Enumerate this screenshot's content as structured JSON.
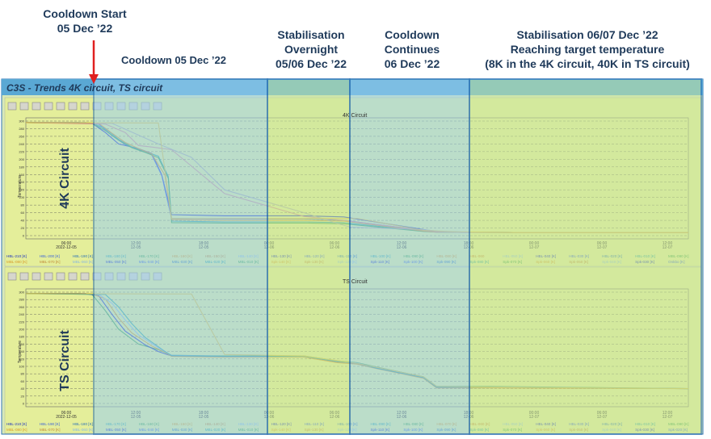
{
  "annotations": {
    "cooldown_start": "Cooldown Start\n05 Dec ’22",
    "cooldown_05": "Cooldown 05 Dec ’22",
    "stabilisation_overnight": "Stabilisation\nOvernight\n05/06 Dec ’22",
    "cooldown_continues": "Cooldown\nContinues\n06 Dec ’22",
    "stabilisation_final": "Stabilisation 06/07 Dec ’22\nReaching target temperature\n(8K in the 4K circuit, 40K in TS circuit)"
  },
  "app_title": "C3S - Trends 4K circuit, TS circuit",
  "circuit_labels": {
    "top": "4K Circuit",
    "bottom": "TS Circuit"
  },
  "colors": {
    "band_blue": "#9ad0f0",
    "band_green": "#c6e6a0",
    "plot_bg": "#e4ee9a",
    "frame_blue": "#2f74b5",
    "title_bar": "#5aa8d4",
    "arrow": "#e02020"
  },
  "toolbar_icons": [
    "cursor-icon",
    "pan-icon",
    "zoom-icon",
    "zoom-x-icon",
    "chart-icon",
    "search-icon",
    "zoom-out-icon",
    "settings-icon",
    "export-icon",
    "refresh-icon",
    "undo-icon",
    "play-icon",
    "clear-icon"
  ],
  "chart_data": [
    {
      "type": "line",
      "title": "4K Circuit",
      "ylabel": "Temperature",
      "xlabel": "",
      "x_ticks": [
        "06:00\n2022-12-05",
        "12:00\n12-05",
        "18:00\n12-05",
        "00:00\n12-06",
        "06:00\n12-06",
        "12:00\n12-06",
        "18:00\n12-06",
        "00:00\n12-07",
        "06:00\n12-07",
        "12:00\n12-07"
      ],
      "y_ticks": [
        "300",
        "280",
        "260",
        "240",
        "220",
        "200",
        "180",
        "160",
        "140",
        "120",
        "100",
        "80",
        "60",
        "40",
        "20",
        "0"
      ],
      "grid": true,
      "legend_entries": [
        "HBL-210 [K]",
        "HBL-200 [K]",
        "HBL-190 [K]",
        "HBL-180 [K]",
        "HBL-170 [K]",
        "HBL-160 [K]",
        "HBL-150 [K]",
        "HBL-140 [K]",
        "HBL-130 [K]",
        "HBL-120 [K]",
        "HBL-110 [K]",
        "HBL-100 [K]",
        "HBL-090 [K]",
        "HBL-080 [K]",
        "HBL-060",
        "HBL-050 [K]",
        "HBL-040 [K]",
        "HBL-030 [K]",
        "HBL-020 [K]",
        "HBL-010 [K]",
        "MBL-090 [K]",
        "MBL-080 [K]",
        "MBL-070 [K]",
        "MBL-060 [K]",
        "MBL-050 [K]",
        "MBL-040 [K]",
        "MBL-030 [K]",
        "MBL-020 [K]",
        "MBL-010 [K]",
        "Spk-140 [K]",
        "Spk-130 [K]",
        "Spk-120 [K]",
        "Spk-110 [K]",
        "Spk-100 [K]",
        "Spk-090 [K]",
        "Spk-080 [K]",
        "Spk-070 [K]",
        "Spk-060 [K]",
        "Spk-050 [K]",
        "Spk-040 [K]",
        "Spk-030 [K]",
        "Onkbo [K]"
      ],
      "series": [
        {
          "color": "#1a2fc0",
          "x": [
            0.0,
            0.08,
            0.1,
            0.12,
            0.14,
            0.17,
            0.19,
            0.205,
            0.22,
            0.3,
            0.42,
            0.48,
            0.6,
            0.62,
            0.75,
            1.0
          ],
          "values": [
            296,
            296,
            294,
            270,
            240,
            228,
            215,
            160,
            55,
            52,
            52,
            49,
            16,
            10,
            8,
            8
          ]
        },
        {
          "color": "#3c64d8",
          "x": [
            0.0,
            0.09,
            0.11,
            0.13,
            0.15,
            0.17,
            0.19,
            0.205,
            0.22,
            0.3,
            0.42,
            0.48,
            0.6,
            0.62,
            0.75,
            1.0
          ],
          "values": [
            296,
            296,
            292,
            262,
            238,
            225,
            212,
            158,
            45,
            44,
            44,
            40,
            14,
            10,
            8,
            8
          ]
        },
        {
          "color": "#27a0a0",
          "x": [
            0.0,
            0.1,
            0.12,
            0.14,
            0.16,
            0.18,
            0.2,
            0.215,
            0.22,
            0.3,
            0.42,
            0.48,
            0.6,
            0.62,
            0.75,
            1.0
          ],
          "values": [
            296,
            295,
            280,
            252,
            232,
            220,
            208,
            155,
            38,
            36,
            36,
            34,
            12,
            10,
            8,
            8
          ]
        },
        {
          "color": "#3aa048",
          "x": [
            0.0,
            0.1,
            0.12,
            0.14,
            0.16,
            0.18,
            0.2,
            0.215,
            0.22,
            0.3,
            0.42,
            0.48,
            0.6,
            0.62,
            0.75,
            1.0
          ],
          "values": [
            296,
            294,
            275,
            250,
            230,
            218,
            204,
            150,
            34,
            33,
            33,
            31,
            11,
            9,
            8,
            8
          ]
        },
        {
          "color": "#d89a2a",
          "x": [
            0.0,
            0.11,
            0.13,
            0.15,
            0.17,
            0.19,
            0.21,
            0.22,
            0.3,
            0.42,
            0.48,
            0.6,
            0.62,
            0.75,
            1.0
          ],
          "values": [
            296,
            294,
            268,
            244,
            228,
            214,
            158,
            42,
            40,
            40,
            38,
            12,
            9,
            8,
            8
          ]
        },
        {
          "color": "#d08c90",
          "x": [
            0.0,
            0.12,
            0.15,
            0.17,
            0.19,
            0.22,
            0.3,
            0.42,
            0.48,
            0.6,
            0.62,
            0.75,
            1.0
          ],
          "values": [
            296,
            292,
            270,
            236,
            232,
            225,
            110,
            50,
            40,
            14,
            10,
            8,
            8
          ]
        },
        {
          "color": "#a8a8a8",
          "x": [
            0.0,
            0.13,
            0.2,
            0.25,
            0.3,
            0.42,
            0.47,
            0.49,
            0.6,
            0.63,
            0.66,
            0.75,
            1.0
          ],
          "values": [
            296,
            294,
            240,
            205,
            120,
            60,
            32,
            22,
            16,
            10,
            8,
            8,
            8
          ]
        },
        {
          "color": "#e0c040",
          "x": [
            0.0,
            0.2,
            0.22,
            0.5,
            0.6,
            0.65,
            0.75,
            1.0
          ],
          "values": [
            296,
            295,
            45,
            45,
            14,
            10,
            8,
            8
          ]
        }
      ]
    },
    {
      "type": "line",
      "title": "TS Circuit",
      "ylabel": "Temperature",
      "xlabel": "",
      "x_ticks": [
        "06:00\n2022-12-05",
        "12:00\n12-05",
        "18:00\n12-05",
        "00:00\n12-06",
        "06:00\n12-06",
        "12:00\n12-06",
        "18:00\n12-06",
        "00:00\n12-07",
        "06:00\n12-07",
        "12:00\n12-07"
      ],
      "y_ticks": [
        "300",
        "280",
        "260",
        "240",
        "220",
        "200",
        "180",
        "160",
        "140",
        "120",
        "100",
        "80",
        "60",
        "40",
        "20",
        "0"
      ],
      "grid": true,
      "legend_entries": [
        "HBL-210 [K]",
        "HBL-190 [K]",
        "HBL-180 [K]",
        "HBL-170 [K]",
        "HBL-160 [K]",
        "HBL-150 [K]",
        "HBL-140 [K]",
        "HBL-130 [K]",
        "HBL-120 [K]",
        "HBL-110 [K]",
        "HBL-100 [K]",
        "HBL-090 [K]",
        "HBL-080 [K]",
        "HBL-070 [K]",
        "HBL-060 [K]",
        "HBL-050 [K]",
        "HBL-040 [K]",
        "HBL-030 [K]",
        "HBL-020 [K]",
        "HBL-010 [K]",
        "MBL-090 [K]",
        "MBL-080 [K]",
        "MBL-070 [K]",
        "MBL-060 [K]",
        "MBL-050 [K]",
        "MBL-040 [K]",
        "MBL-030 [K]",
        "MBL-020 [K]",
        "MBL-010 [K]",
        "Spk-140 [K]",
        "Spk-130 [K]",
        "Spk-120 [K]",
        "Spk-110 [K]",
        "Spk-100 [K]",
        "Spk-090 [K]",
        "Spk-080 [K]",
        "Spk-070 [K]",
        "Spk-060 [K]",
        "Spk-050 [K]",
        "Spk-040 [K]",
        "Spk-030 [K]",
        "Spk-020 [K]"
      ],
      "series": [
        {
          "color": "#3aa048",
          "x": [
            0.0,
            0.08,
            0.1,
            0.12,
            0.14,
            0.17,
            0.2,
            0.22,
            0.3,
            0.42,
            0.47,
            0.5,
            0.53,
            0.6,
            0.62,
            0.7,
            1.0
          ],
          "values": [
            296,
            296,
            294,
            250,
            200,
            160,
            145,
            130,
            128,
            128,
            115,
            110,
            98,
            72,
            46,
            46,
            40
          ]
        },
        {
          "color": "#1a2fc0",
          "x": [
            0.0,
            0.09,
            0.11,
            0.13,
            0.15,
            0.18,
            0.2,
            0.22,
            0.3,
            0.42,
            0.47,
            0.5,
            0.53,
            0.6,
            0.62,
            0.7,
            1.0
          ],
          "values": [
            296,
            296,
            290,
            240,
            195,
            158,
            140,
            128,
            126,
            126,
            112,
            108,
            95,
            70,
            44,
            44,
            40
          ]
        },
        {
          "color": "#d89a2a",
          "x": [
            0.0,
            0.1,
            0.12,
            0.14,
            0.16,
            0.19,
            0.21,
            0.22,
            0.3,
            0.42,
            0.47,
            0.5,
            0.53,
            0.6,
            0.62,
            0.7,
            1.0
          ],
          "values": [
            296,
            295,
            282,
            230,
            190,
            155,
            138,
            127,
            125,
            125,
            110,
            106,
            94,
            68,
            42,
            42,
            40
          ]
        },
        {
          "color": "#8ab8e0",
          "x": [
            0.0,
            0.11,
            0.13,
            0.15,
            0.17,
            0.2,
            0.22,
            0.3,
            0.42,
            0.47,
            0.5,
            0.53,
            0.6,
            0.62,
            0.7,
            1.0
          ],
          "values": [
            296,
            294,
            270,
            225,
            185,
            150,
            130,
            127,
            127,
            114,
            109,
            96,
            70,
            45,
            45,
            40
          ]
        },
        {
          "color": "#27a0a0",
          "x": [
            0.0,
            0.12,
            0.14,
            0.16,
            0.18,
            0.21,
            0.22,
            0.3,
            0.42,
            0.47,
            0.5,
            0.53,
            0.6,
            0.62,
            0.7,
            1.0
          ],
          "values": [
            296,
            294,
            260,
            215,
            178,
            140,
            129,
            127,
            127,
            113,
            108,
            95,
            70,
            44,
            44,
            40
          ]
        },
        {
          "color": "#e0c040",
          "x": [
            0.0,
            0.25,
            0.3,
            0.42,
            0.5,
            0.6,
            0.62,
            0.7,
            1.0
          ],
          "values": [
            296,
            295,
            132,
            128,
            108,
            72,
            46,
            44,
            40
          ]
        }
      ]
    }
  ]
}
